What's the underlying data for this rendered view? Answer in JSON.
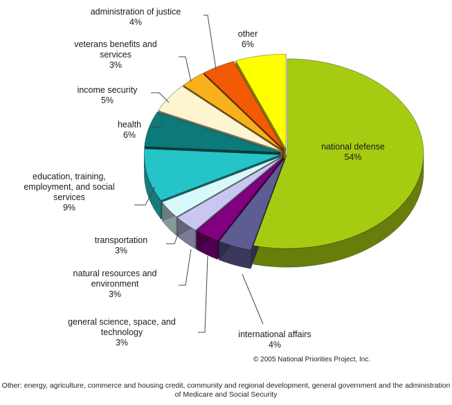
{
  "chart_data": {
    "type": "pie",
    "title": "",
    "categories": [
      "national defense",
      "international affairs",
      "general science, space, and technology",
      "natural resources and environment",
      "transportation",
      "education, training, employment, and social services",
      "health",
      "income security",
      "veterans benefits and services",
      "administration of justice",
      "other"
    ],
    "values": [
      54,
      4,
      3,
      3,
      3,
      9,
      6,
      5,
      3,
      4,
      6
    ],
    "value_labels": [
      "54%",
      "4%",
      "3%",
      "3%",
      "3%",
      "9%",
      "6%",
      "5%",
      "3%",
      "4%",
      "6%"
    ],
    "colors": [
      "#a6cc11",
      "#5d5c93",
      "#800080",
      "#c9c6f2",
      "#d8f9fc",
      "#25c4c8",
      "#0b7a78",
      "#fdf5cf",
      "#f9b01d",
      "#f25a05",
      "#ffff00"
    ],
    "style": "3d-exploded",
    "legend": "none"
  },
  "labels": {
    "national_defense": "national defense",
    "international_affairs": "international affairs",
    "general_science": "general science, space, and\ntechnology",
    "natural_resources": "natural resources and\nenvironment",
    "transportation": "transportation",
    "education": "education, training,\nemployment, and social\nservices",
    "health": "health",
    "income_security": "income security",
    "veterans": "veterans benefits and\nservices",
    "justice": "administration of justice",
    "other": "other"
  },
  "copyright": "© 2005 National Priorities Project, Inc.",
  "footnote": "Other: energy, agriculture, commerce and housing credit, community and regional development, general government and the administration of Medicare and Social Security"
}
